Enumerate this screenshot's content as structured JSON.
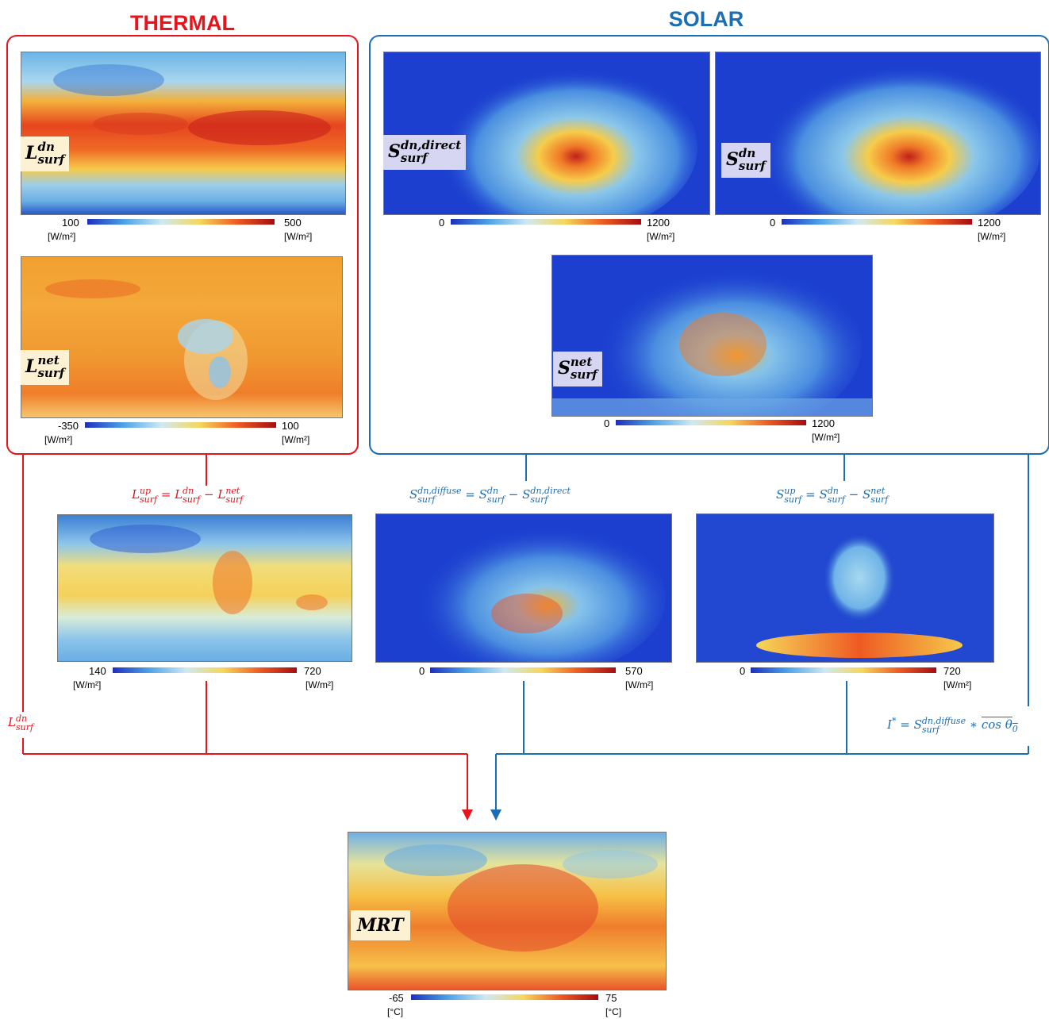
{
  "titles": {
    "thermal": "THERMAL",
    "solar": "SOLAR"
  },
  "colors": {
    "thermal": "#e8141c",
    "solar": "#1a6eb5"
  },
  "maps": {
    "l_dn": {
      "label": "L",
      "sup": "dn",
      "sub": "surf",
      "min": "100",
      "max": "500",
      "unit_left": "[W/m²]",
      "unit_right": "[W/m²]"
    },
    "l_net": {
      "label": "L",
      "sup": "net",
      "sub": "surf",
      "min": "-350",
      "max": "100",
      "unit_left": "[W/m²]",
      "unit_right": "[W/m²]"
    },
    "s_direct": {
      "label": "S",
      "sup": "dn,direct",
      "sub": "surf",
      "min": "0",
      "max": "1200",
      "unit_right": "[W/m²]"
    },
    "s_dn": {
      "label": "S",
      "sup": "dn",
      "sub": "surf",
      "min": "0",
      "max": "1200",
      "unit_right": "[W/m²]"
    },
    "s_net": {
      "label": "S",
      "sup": "net",
      "sub": "surf",
      "min": "0",
      "max": "1200",
      "unit_right": "[W/m²]"
    },
    "l_up": {
      "min": "140",
      "max": "720",
      "unit_left": "[W/m²]",
      "unit_right": "[W/m²]"
    },
    "s_diffuse": {
      "min": "0",
      "max": "570",
      "unit_right": "[W/m²]"
    },
    "s_up": {
      "min": "0",
      "max": "720",
      "unit_right": "[W/m²]"
    },
    "mrt": {
      "label": "MRT",
      "min": "-65",
      "max": "75",
      "unit_left": "[°C]",
      "unit_right": "[°C]"
    }
  },
  "formulas": {
    "l_up": {
      "lhs": "L",
      "lhs_sup": "up",
      "lhs_sub": "surf",
      "op1": "=",
      "a": "L",
      "a_sup": "dn",
      "a_sub": "surf",
      "op2": "−",
      "b": "L",
      "b_sup": "net",
      "b_sub": "surf"
    },
    "s_diffuse": {
      "lhs": "S",
      "lhs_sup": "dn,diffuse",
      "lhs_sub": "surf",
      "op1": "=",
      "a": "S",
      "a_sup": "dn",
      "a_sub": "surf",
      "op2": "−",
      "b": "S",
      "b_sup": "dn,direct",
      "b_sub": "surf"
    },
    "s_up": {
      "lhs": "S",
      "lhs_sup": "up",
      "lhs_sub": "surf",
      "op1": "=",
      "a": "S",
      "a_sup": "dn",
      "a_sub": "surf",
      "op2": "−",
      "b": "S",
      "b_sup": "net",
      "b_sub": "surf"
    },
    "l_dn_side": {
      "lhs": "L",
      "lhs_sup": "dn",
      "lhs_sub": "surf"
    },
    "i_star": {
      "lhs": "I",
      "lhs_sup": "*",
      "op1": "=",
      "a": "S",
      "a_sup": "dn,diffuse",
      "a_sub": "surf",
      "op2": "∗",
      "c": "cos θ",
      "c_sub": "0"
    }
  }
}
